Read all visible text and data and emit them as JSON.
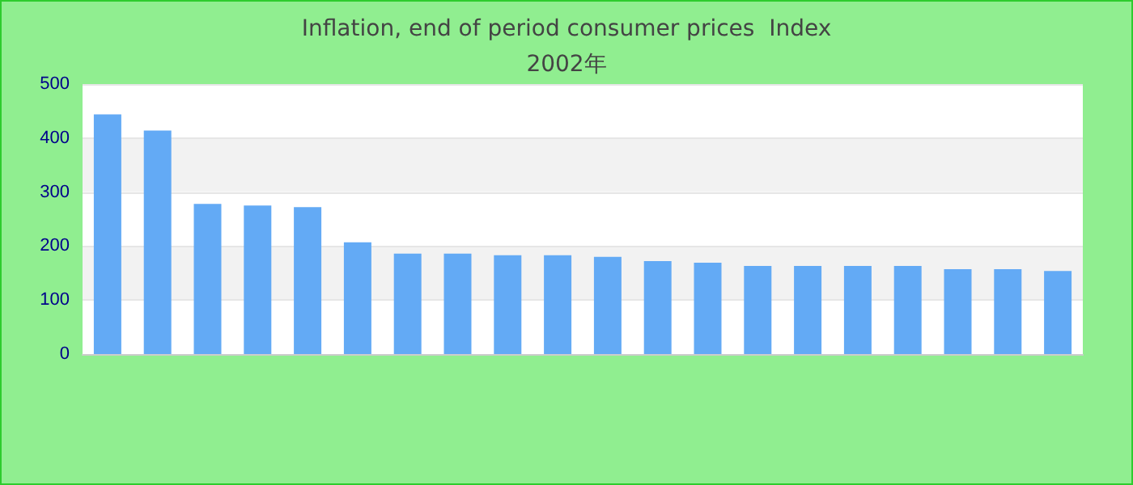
{
  "chart_data": {
    "type": "bar",
    "title": "Inflation, end of period consumer prices  Index\n2002年",
    "categories": [
      null,
      null,
      null,
      null,
      null,
      null,
      null,
      null,
      null,
      null,
      null,
      null,
      null,
      null,
      null,
      null,
      null,
      null,
      null,
      null
    ],
    "values": [
      444,
      414,
      278,
      275,
      272,
      207,
      186,
      186,
      183,
      183,
      180,
      172,
      169,
      163,
      163,
      163,
      163,
      157,
      157,
      154
    ],
    "color": "#63aaf5",
    "ylim": [
      0,
      500
    ],
    "yticks": [
      0,
      100,
      200,
      300,
      400,
      500
    ],
    "grid": "y"
  }
}
